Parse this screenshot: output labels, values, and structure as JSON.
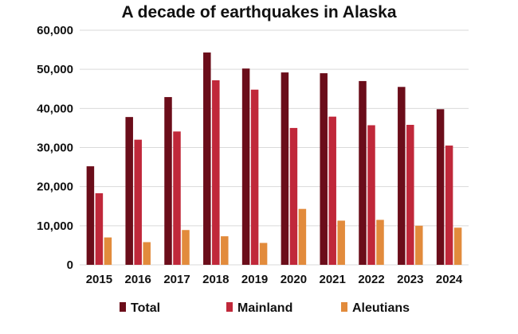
{
  "chart_data": {
    "type": "bar",
    "title": "A decade of earthquakes in Alaska",
    "xlabel": "",
    "ylabel": "",
    "ylim": [
      0,
      60000
    ],
    "yticks": [
      0,
      10000,
      20000,
      30000,
      40000,
      50000,
      60000
    ],
    "ytick_labels": [
      "0",
      "10,000",
      "20,000",
      "30,000",
      "40,000",
      "50,000",
      "60,000"
    ],
    "grid": true,
    "legend_position": "bottom",
    "categories": [
      "2015",
      "2016",
      "2017",
      "2018",
      "2019",
      "2020",
      "2021",
      "2022",
      "2023",
      "2024"
    ],
    "series": [
      {
        "name": "Total",
        "color": "#6b0d1a",
        "values": [
          25200,
          37800,
          42900,
          54300,
          50200,
          49200,
          49000,
          47000,
          45500,
          39800
        ]
      },
      {
        "name": "Mainland",
        "color": "#c0283a",
        "values": [
          18300,
          32000,
          34100,
          47200,
          44800,
          35000,
          37900,
          35700,
          35800,
          30500
        ]
      },
      {
        "name": "Aleutians",
        "color": "#e28b3c",
        "values": [
          7000,
          5800,
          8900,
          7300,
          5600,
          14300,
          11300,
          11500,
          10000,
          9500
        ]
      }
    ]
  }
}
